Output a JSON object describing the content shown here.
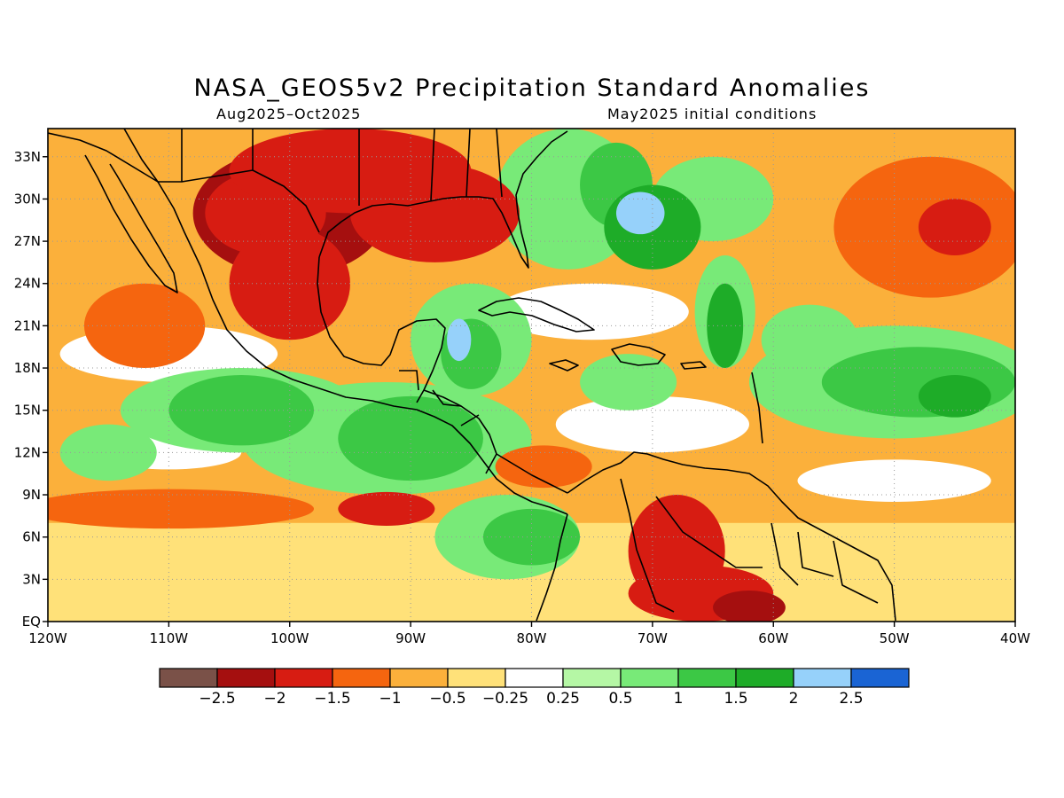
{
  "title": "NASA_GEOS5v2 Precipitation Standard Anomalies",
  "subtitle_left": "Aug2025–Oct2025",
  "subtitle_right": "May2025 initial conditions",
  "map": {
    "lon_range": [
      -120,
      -40
    ],
    "lat_range": [
      0,
      35
    ],
    "lon_ticks": [
      {
        "value": -120,
        "label": "120W"
      },
      {
        "value": -110,
        "label": "110W"
      },
      {
        "value": -100,
        "label": "100W"
      },
      {
        "value": -90,
        "label": "90W"
      },
      {
        "value": -80,
        "label": "80W"
      },
      {
        "value": -70,
        "label": "70W"
      },
      {
        "value": -60,
        "label": "60W"
      },
      {
        "value": -50,
        "label": "50W"
      },
      {
        "value": -40,
        "label": "40W"
      }
    ],
    "lat_ticks": [
      {
        "value": 0,
        "label": "EQ"
      },
      {
        "value": 3,
        "label": "3N"
      },
      {
        "value": 6,
        "label": "6N"
      },
      {
        "value": 9,
        "label": "9N"
      },
      {
        "value": 12,
        "label": "12N"
      },
      {
        "value": 15,
        "label": "15N"
      },
      {
        "value": 18,
        "label": "18N"
      },
      {
        "value": 21,
        "label": "21N"
      },
      {
        "value": 24,
        "label": "24N"
      },
      {
        "value": 27,
        "label": "27N"
      },
      {
        "value": 30,
        "label": "30N"
      },
      {
        "value": 33,
        "label": "33N"
      }
    ],
    "grid": "dotted"
  },
  "colorbar": {
    "colors": [
      "#7a5148",
      "#a50f0f",
      "#d71c12",
      "#f5650f",
      "#fbb03b",
      "#ffe179",
      "#ffffff",
      "#b5f7a5",
      "#78ea78",
      "#3cc845",
      "#1eac28",
      "#96d1fa",
      "#1a64d4"
    ],
    "labels": [
      "−2.5",
      "−2",
      "−1.5",
      "−1",
      "−0.5",
      "−0.25",
      "0.25",
      "0.5",
      "1",
      "1.5",
      "2",
      "2.5"
    ]
  },
  "anomaly_regions": [
    {
      "lon": -100,
      "lat": 29,
      "rx": 8,
      "ry": 4.5,
      "level": 1
    },
    {
      "lon": -102,
      "lat": 29,
      "rx": 5,
      "ry": 3,
      "level": 2
    },
    {
      "lon": -88,
      "lat": 29,
      "rx": 7,
      "ry": 3.5,
      "level": 2
    },
    {
      "lon": -95,
      "lat": 32,
      "rx": 10,
      "ry": 3,
      "level": 2
    },
    {
      "lon": -112,
      "lat": 21,
      "rx": 5,
      "ry": 3,
      "level": 3
    },
    {
      "lon": -100,
      "lat": 24,
      "rx": 5,
      "ry": 4,
      "level": 2
    },
    {
      "lon": -47,
      "lat": 28,
      "rx": 8,
      "ry": 5,
      "level": 3
    },
    {
      "lon": -45,
      "lat": 28,
      "rx": 3,
      "ry": 2,
      "level": 2
    },
    {
      "lon": -110,
      "lat": 8,
      "rx": 12,
      "ry": 1.4,
      "level": 3
    },
    {
      "lon": -92,
      "lat": 8,
      "rx": 4,
      "ry": 1.2,
      "level": 2
    },
    {
      "lon": -68,
      "lat": 5,
      "rx": 4,
      "ry": 4,
      "level": 2
    },
    {
      "lon": -66,
      "lat": 2,
      "rx": 6,
      "ry": 2,
      "level": 2
    },
    {
      "lon": -62,
      "lat": 1,
      "rx": 3,
      "ry": 1.2,
      "level": 1
    },
    {
      "lon": -79,
      "lat": 11,
      "rx": 4,
      "ry": 1.5,
      "level": 3
    },
    {
      "lon": -73,
      "lat": 31,
      "rx": 3,
      "ry": 3,
      "level": 9
    },
    {
      "lon": -70,
      "lat": 28,
      "rx": 4,
      "ry": 3,
      "level": 10
    },
    {
      "lon": -71,
      "lat": 29,
      "rx": 2,
      "ry": 1.5,
      "level": 11
    },
    {
      "lon": -64,
      "lat": 21,
      "rx": 1.5,
      "ry": 3,
      "level": 10
    },
    {
      "lon": -90,
      "lat": 13,
      "rx": 6,
      "ry": 3,
      "level": 9
    },
    {
      "lon": -104,
      "lat": 15,
      "rx": 6,
      "ry": 2.5,
      "level": 9
    },
    {
      "lon": -80,
      "lat": 6,
      "rx": 4,
      "ry": 2,
      "level": 9
    },
    {
      "lon": -48,
      "lat": 17,
      "rx": 8,
      "ry": 2.5,
      "level": 9
    },
    {
      "lon": -45,
      "lat": 16,
      "rx": 3,
      "ry": 1.5,
      "level": 10
    },
    {
      "lon": -85,
      "lat": 19,
      "rx": 2.5,
      "ry": 2.5,
      "level": 9
    },
    {
      "lon": -86,
      "lat": 20,
      "rx": 1,
      "ry": 1.5,
      "level": 11
    }
  ],
  "green_patches": [
    {
      "lon": -77,
      "lat": 30,
      "rx": 6,
      "ry": 5
    },
    {
      "lon": -65,
      "lat": 30,
      "rx": 5,
      "ry": 3
    },
    {
      "lon": -92,
      "lat": 13,
      "rx": 12,
      "ry": 4
    },
    {
      "lon": -104,
      "lat": 15,
      "rx": 10,
      "ry": 3
    },
    {
      "lon": -82,
      "lat": 6,
      "rx": 6,
      "ry": 3
    },
    {
      "lon": -50,
      "lat": 17,
      "rx": 12,
      "ry": 4
    },
    {
      "lon": -57,
      "lat": 20,
      "rx": 4,
      "ry": 2.5
    },
    {
      "lon": -85,
      "lat": 20,
      "rx": 5,
      "ry": 4
    },
    {
      "lon": -115,
      "lat": 12,
      "rx": 4,
      "ry": 2
    },
    {
      "lon": -72,
      "lat": 17,
      "rx": 4,
      "ry": 2
    },
    {
      "lon": -64,
      "lat": 22,
      "rx": 2.5,
      "ry": 4
    }
  ],
  "white_patches": [
    {
      "lon": -110,
      "lat": 19,
      "rx": 9,
      "ry": 2
    },
    {
      "lon": -75,
      "lat": 22,
      "rx": 8,
      "ry": 2
    },
    {
      "lon": -50,
      "lat": 10,
      "rx": 8,
      "ry": 1.5
    },
    {
      "lon": -110,
      "lat": 12,
      "rx": 6,
      "ry": 1.2
    },
    {
      "lon": -70,
      "lat": 14,
      "rx": 8,
      "ry": 2
    }
  ]
}
